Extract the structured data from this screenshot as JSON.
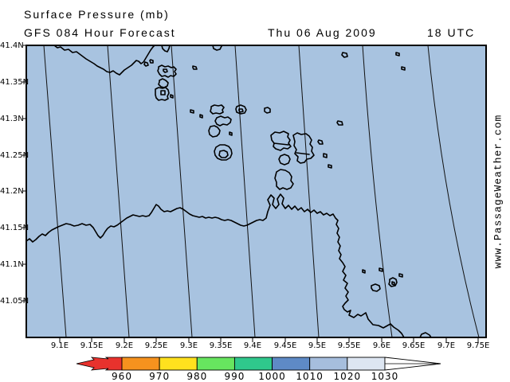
{
  "header": {
    "line1": "Surface Pressure (mb)",
    "line2": "GFS 084 Hour Forecast",
    "date": "Thu 06 Aug 2009",
    "utc": "18 UTC"
  },
  "watermark": "www.PassageWeather.com",
  "map": {
    "background_color": "#a8c3e0",
    "border_color": "#000000",
    "y_axis_labels": [
      "41.4N",
      "41.35N",
      "41.3N",
      "41.25N",
      "41.2N",
      "41.15N",
      "41.1N",
      "41.05N"
    ],
    "x_axis_labels": [
      "9.1E",
      "9.15E",
      "9.2E",
      "9.25E",
      "9.3E",
      "9.35E",
      "9.4E",
      "9.45E",
      "9.5E",
      "9.55E",
      "9.6E",
      "9.65E",
      "9.7E",
      "9.75E"
    ]
  },
  "colorbar": {
    "values": [
      "960",
      "970",
      "980",
      "990",
      "1000",
      "1010",
      "1020",
      "1030"
    ],
    "segment_colors": [
      "#f6921e",
      "#ffe11e",
      "#67e55f",
      "#2fc88c",
      "#5e8ac6",
      "#a6bedd",
      "#dde6f2"
    ],
    "low_arrow_color": "#e8322d",
    "high_arrow_color": "#ffffff"
  }
}
